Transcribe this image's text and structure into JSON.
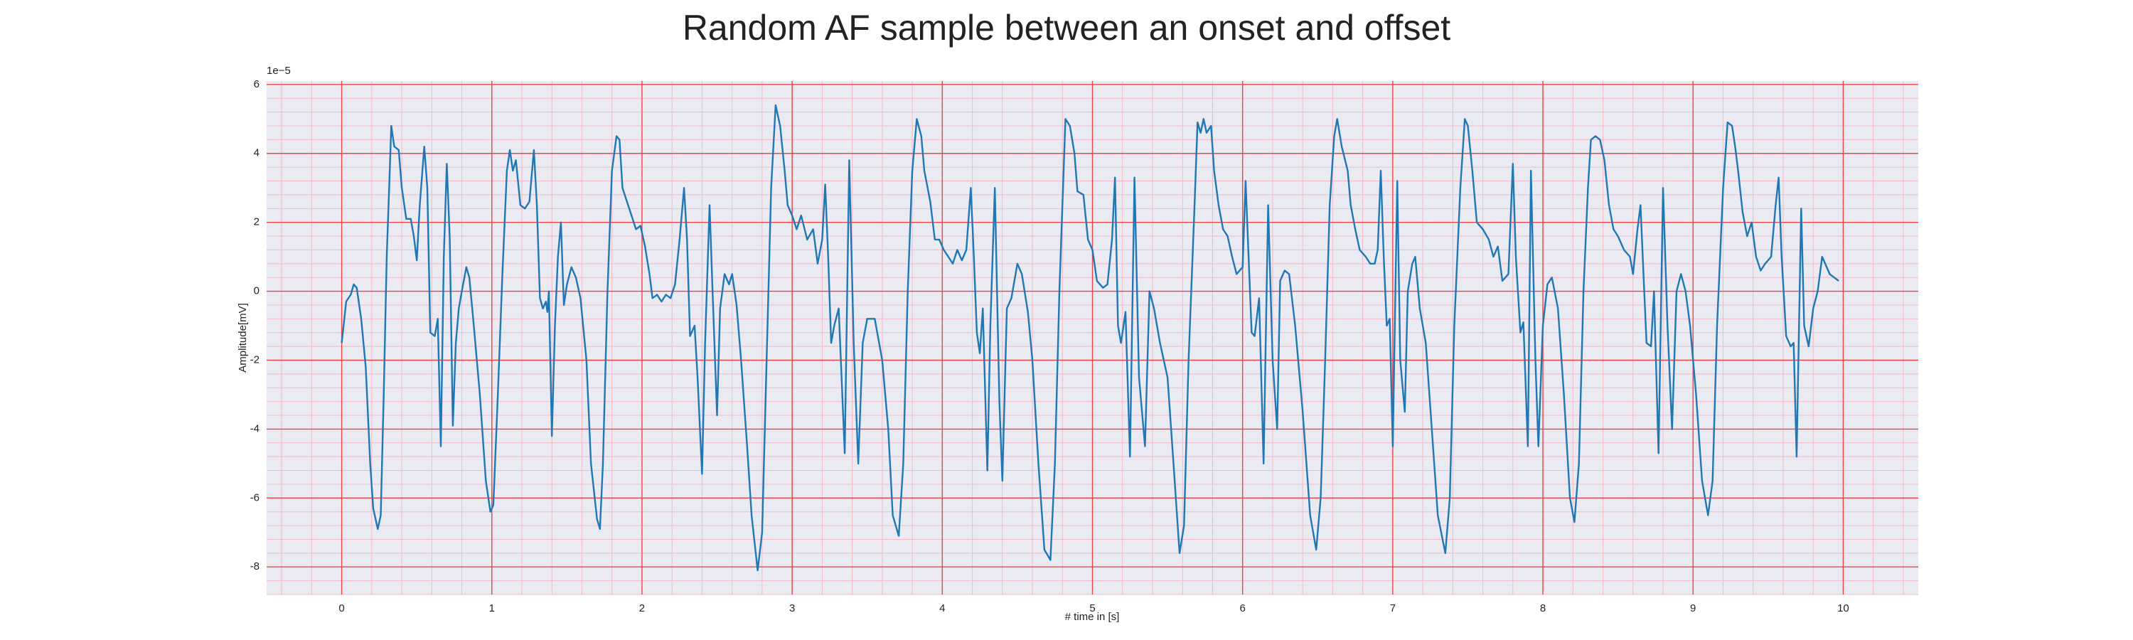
{
  "chart_data": {
    "type": "line",
    "title": "Random AF sample between an onset and offset",
    "xlabel": "# time in [s]",
    "ylabel": "Amplitude[mV]",
    "y_offset_label": "1e−5",
    "xlim": [
      -0.5,
      10.5
    ],
    "xticks": [
      0,
      1,
      2,
      3,
      4,
      5,
      6,
      7,
      8,
      9,
      10
    ],
    "ylim": [
      -8.8,
      6.1
    ],
    "yticks": [
      -8,
      -6,
      -4,
      -2,
      0,
      2,
      4,
      6
    ],
    "grid": true,
    "grid_color": "#ee4444",
    "minor_grid": true,
    "minor_grid_color": "#f2b8c6",
    "background": "#eaeaf2",
    "x": [
      0,
      0.03,
      0.06,
      0.08,
      0.1,
      0.13,
      0.16,
      0.19,
      0.21,
      0.24,
      0.26,
      0.28,
      0.3,
      0.32,
      0.33,
      0.35,
      0.38,
      0.4,
      0.43,
      0.46,
      0.48,
      0.5,
      0.52,
      0.55,
      0.57,
      0.59,
      0.62,
      0.64,
      0.66,
      0.68,
      0.7,
      0.72,
      0.74,
      0.76,
      0.78,
      0.8,
      0.83,
      0.85,
      0.88,
      0.92,
      0.96,
      0.99,
      1.01,
      1.04,
      1.07,
      1.1,
      1.12,
      1.14,
      1.16,
      1.19,
      1.22,
      1.25,
      1.28,
      1.3,
      1.32,
      1.34,
      1.36,
      1.37,
      1.38,
      1.4,
      1.42,
      1.44,
      1.46,
      1.48,
      1.5,
      1.53,
      1.56,
      1.59,
      1.63,
      1.66,
      1.7,
      1.72,
      1.74,
      1.77,
      1.8,
      1.83,
      1.85,
      1.87,
      1.9,
      1.93,
      1.96,
      1.99,
      2.02,
      2.05,
      2.07,
      2.1,
      2.13,
      2.16,
      2.19,
      2.22,
      2.25,
      2.28,
      2.3,
      2.32,
      2.35,
      2.37,
      2.4,
      2.42,
      2.45,
      2.47,
      2.5,
      2.52,
      2.55,
      2.58,
      2.6,
      2.63,
      2.66,
      2.7,
      2.73,
      2.77,
      2.8,
      2.83,
      2.86,
      2.89,
      2.92,
      2.95,
      2.97,
      3.0,
      3.03,
      3.06,
      3.1,
      3.14,
      3.17,
      3.2,
      3.22,
      3.24,
      3.26,
      3.28,
      3.31,
      3.35,
      3.38,
      3.41,
      3.44,
      3.47,
      3.5,
      3.55,
      3.6,
      3.64,
      3.67,
      3.71,
      3.74,
      3.77,
      3.8,
      3.83,
      3.86,
      3.88,
      3.92,
      3.95,
      3.98,
      4.01,
      4.04,
      4.07,
      4.1,
      4.13,
      4.16,
      4.19,
      4.21,
      4.23,
      4.25,
      4.27,
      4.3,
      4.32,
      4.35,
      4.38,
      4.4,
      4.43,
      4.46,
      4.5,
      4.53,
      4.57,
      4.6,
      4.64,
      4.68,
      4.72,
      4.75,
      4.78,
      4.82,
      4.85,
      4.88,
      4.9,
      4.94,
      4.97,
      5.0,
      5.03,
      5.07,
      5.1,
      5.13,
      5.15,
      5.17,
      5.19,
      5.22,
      5.25,
      5.28,
      5.31,
      5.35,
      5.38,
      5.41,
      5.45,
      5.5,
      5.54,
      5.58,
      5.61,
      5.64,
      5.68,
      5.7,
      5.72,
      5.74,
      5.76,
      5.79,
      5.81,
      5.84,
      5.87,
      5.9,
      5.93,
      5.96,
      6.0,
      6.02,
      6.04,
      6.06,
      6.08,
      6.11,
      6.14,
      6.17,
      6.2,
      6.23,
      6.25,
      6.28,
      6.31,
      6.35,
      6.4,
      6.45,
      6.49,
      6.52,
      6.55,
      6.58,
      6.61,
      6.63,
      6.66,
      6.7,
      6.72,
      6.75,
      6.78,
      6.82,
      6.85,
      6.88,
      6.9,
      6.92,
      6.94,
      6.96,
      6.98,
      7.0,
      7.03,
      7.05,
      7.08,
      7.1,
      7.13,
      7.15,
      7.18,
      7.22,
      7.26,
      7.3,
      7.35,
      7.38,
      7.41,
      7.45,
      7.48,
      7.5,
      7.53,
      7.56,
      7.6,
      7.64,
      7.67,
      7.7,
      7.73,
      7.77,
      7.8,
      7.82,
      7.85,
      7.87,
      7.9,
      7.92,
      7.95,
      7.97,
      8.0,
      8.03,
      8.06,
      8.1,
      8.14,
      8.18,
      8.21,
      8.24,
      8.27,
      8.3,
      8.32,
      8.35,
      8.38,
      8.41,
      8.44,
      8.47,
      8.5,
      8.54,
      8.58,
      8.6,
      8.63,
      8.65,
      8.67,
      8.69,
      8.72,
      8.74,
      8.77,
      8.8,
      8.83,
      8.86,
      8.89,
      8.92,
      8.95,
      8.98,
      9.02,
      9.06,
      9.1,
      9.13,
      9.16,
      9.2,
      9.23,
      9.26,
      9.28,
      9.3,
      9.33,
      9.36,
      9.39,
      9.42,
      9.45,
      9.48,
      9.52,
      9.55,
      9.57,
      9.59,
      9.62,
      9.65,
      9.67,
      9.69,
      9.72,
      9.74,
      9.77,
      9.8,
      9.83,
      9.86,
      9.88,
      9.91,
      9.97
    ],
    "series": [
      {
        "color": "#1f77b4",
        "values": [
          -1.5,
          -0.3,
          -0.1,
          0.2,
          0.1,
          -0.8,
          -2.2,
          -5,
          -6.3,
          -6.9,
          -6.5,
          -3,
          1,
          3.5,
          4.8,
          4.2,
          4.1,
          3,
          2.1,
          2.1,
          1.6,
          0.9,
          2.5,
          4.2,
          3.0,
          -1.2,
          -1.3,
          -0.8,
          -4.5,
          1,
          3.7,
          1.5,
          -3.9,
          -1.5,
          -0.5,
          0,
          0.7,
          0.4,
          -1,
          -3,
          -5.5,
          -6.4,
          -6.2,
          -3,
          0.5,
          3.5,
          4.1,
          3.5,
          3.8,
          2.5,
          2.4,
          2.6,
          4.1,
          2.5,
          -0.2,
          -0.5,
          -0.3,
          -0.6,
          0,
          -4.2,
          -1,
          1,
          2,
          -0.4,
          0.2,
          0.7,
          0.4,
          -0.2,
          -2,
          -5,
          -6.6,
          -6.9,
          -5,
          0,
          3.5,
          4.5,
          4.4,
          3,
          2.6,
          2.2,
          1.8,
          1.9,
          1.3,
          0.5,
          -0.2,
          -0.1,
          -0.3,
          -0.1,
          -0.2,
          0.2,
          1.5,
          3,
          1.5,
          -1.3,
          -1,
          -2.5,
          -5.3,
          -1.5,
          2.5,
          0,
          -3.6,
          -0.5,
          0.5,
          0.2,
          0.5,
          -0.4,
          -2,
          -4.5,
          -6.5,
          -8.1,
          -7,
          -2,
          3,
          5.4,
          4.8,
          3.5,
          2.5,
          2.2,
          1.8,
          2.2,
          1.5,
          1.8,
          0.8,
          1.5,
          3.1,
          1,
          -1.5,
          -1.0,
          -0.5,
          -4.7,
          3.8,
          -1.5,
          -5,
          -1.5,
          -0.8,
          -0.8,
          -2,
          -4,
          -6.5,
          -7.1,
          -5,
          0,
          3.5,
          5.0,
          4.5,
          3.5,
          2.6,
          1.5,
          1.5,
          1.2,
          1.0,
          0.8,
          1.2,
          0.9,
          1.2,
          3.0,
          1,
          -1.2,
          -1.8,
          -0.5,
          -5.2,
          -1,
          3.0,
          -3.2,
          -5.5,
          -0.5,
          -0.2,
          0.8,
          0.5,
          -0.6,
          -2,
          -5,
          -7.5,
          -7.8,
          -5,
          0,
          5.0,
          4.8,
          4.0,
          2.9,
          2.8,
          1.5,
          1.2,
          0.3,
          0.1,
          0.2,
          1.5,
          3.3,
          -1,
          -1.5,
          -0.6,
          -4.8,
          3.3,
          -2.5,
          -4.5,
          0,
          -0.5,
          -1.5,
          -2.5,
          -5,
          -7.6,
          -6.8,
          -2,
          2.5,
          4.9,
          4.6,
          5.0,
          4.6,
          4.8,
          3.5,
          2.5,
          1.8,
          1.6,
          1,
          0.5,
          0.7,
          3.2,
          1,
          -1.2,
          -1.3,
          -0.2,
          -5,
          2.5,
          -2,
          -4,
          0.3,
          0.6,
          0.5,
          -1,
          -3.5,
          -6.5,
          -7.5,
          -6,
          -2,
          2.5,
          4.5,
          5.0,
          4.2,
          3.5,
          2.5,
          1.8,
          1.2,
          1.0,
          0.8,
          0.8,
          1.2,
          3.5,
          1,
          -1,
          -0.8,
          -4.5,
          3.2,
          -2,
          -3.5,
          0,
          0.8,
          1,
          -0.5,
          -1.5,
          -4,
          -6.5,
          -7.6,
          -6,
          -1,
          3,
          5.0,
          4.8,
          3.5,
          2.0,
          1.8,
          1.5,
          1.0,
          1.3,
          0.3,
          0.5,
          3.7,
          1,
          -1.2,
          -0.9,
          -4.5,
          3.5,
          -2,
          -4.5,
          -1,
          0.2,
          0.4,
          -0.5,
          -3,
          -6,
          -6.7,
          -5,
          0,
          3,
          4.4,
          4.5,
          4.4,
          3.8,
          2.5,
          1.8,
          1.6,
          1.2,
          1.0,
          0.5,
          1.8,
          2.5,
          0.5,
          -1.5,
          -1.6,
          0,
          -4.7,
          3.0,
          -1,
          -4,
          0,
          0.5,
          0,
          -1,
          -3,
          -5.5,
          -6.5,
          -5.5,
          -1,
          3,
          4.9,
          4.8,
          4.2,
          3.5,
          2.3,
          1.6,
          2.0,
          1.0,
          0.6,
          0.8,
          1.0,
          2.5,
          3.3,
          1,
          -1.3,
          -1.6,
          -1.5,
          -4.8,
          2.4,
          -1,
          -1.6,
          -0.5,
          0,
          1.0,
          0.8,
          0.5,
          0.3
        ]
      }
    ]
  }
}
